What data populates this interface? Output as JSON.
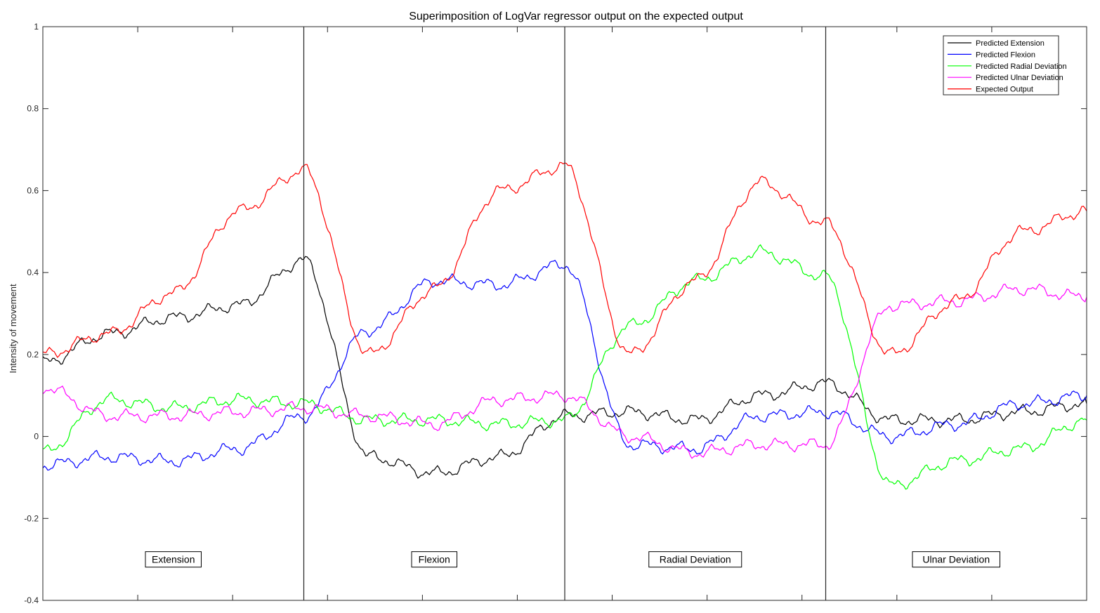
{
  "chart_data": {
    "type": "line",
    "title": "Superimposition of LogVar regressor output on the expected output",
    "xlabel": "",
    "ylabel": "Intensity of movement",
    "ylim": [
      -0.4,
      1
    ],
    "yticks": [
      "-0.4",
      "-0.2",
      "0",
      "0.2",
      "0.4",
      "0.6",
      "0.8",
      "1"
    ],
    "xlim": [
      0,
      4
    ],
    "grid": false,
    "legend_position": "top-right",
    "x": [
      0,
      0.25,
      0.5,
      0.75,
      1,
      1.25,
      1.5,
      1.75,
      2,
      2.25,
      2.5,
      2.75,
      3,
      3.25,
      3.5,
      3.75,
      4
    ],
    "series": [
      {
        "name": "Predicted Extension",
        "color": "#000000",
        "values": [
          0.18,
          0.25,
          0.29,
          0.32,
          0.43,
          -0.05,
          -0.09,
          -0.05,
          0.05,
          0.06,
          0.04,
          0.1,
          0.13,
          0.04,
          0.04,
          0.06,
          0.08
        ]
      },
      {
        "name": "Predicted Flexion",
        "color": "#0000ff",
        "values": [
          -0.07,
          -0.05,
          -0.06,
          -0.03,
          0.05,
          0.26,
          0.38,
          0.37,
          0.42,
          -0.02,
          -0.03,
          0.05,
          0.06,
          0.0,
          0.03,
          0.08,
          0.1
        ]
      },
      {
        "name": "Predicted Radial Deviation",
        "color": "#00ff00",
        "values": [
          -0.04,
          0.09,
          0.07,
          0.09,
          0.08,
          0.04,
          0.04,
          0.03,
          0.04,
          0.27,
          0.38,
          0.45,
          0.39,
          -0.12,
          -0.06,
          -0.03,
          0.04
        ]
      },
      {
        "name": "Predicted Ulnar Deviation",
        "color": "#ff00ff",
        "values": [
          0.12,
          0.05,
          0.05,
          0.06,
          0.07,
          0.05,
          0.03,
          0.09,
          0.1,
          0.0,
          -0.04,
          -0.02,
          -0.02,
          0.32,
          0.33,
          0.36,
          0.34
        ]
      },
      {
        "name": "Expected Output",
        "color": "#ff0000",
        "values": [
          0.2,
          0.25,
          0.35,
          0.55,
          0.65,
          0.2,
          0.36,
          0.6,
          0.66,
          0.2,
          0.38,
          0.62,
          0.52,
          0.2,
          0.33,
          0.5,
          0.55
        ]
      }
    ],
    "annotations": [
      {
        "text": "Extension",
        "x": 0.5,
        "y": -0.3
      },
      {
        "text": "Flexion",
        "x": 1.5,
        "y": -0.3
      },
      {
        "text": "Radial Deviation",
        "x": 2.5,
        "y": -0.3
      },
      {
        "text": "Ulnar Deviation",
        "x": 3.5,
        "y": -0.3
      }
    ],
    "separators": [
      1,
      2,
      3
    ]
  }
}
